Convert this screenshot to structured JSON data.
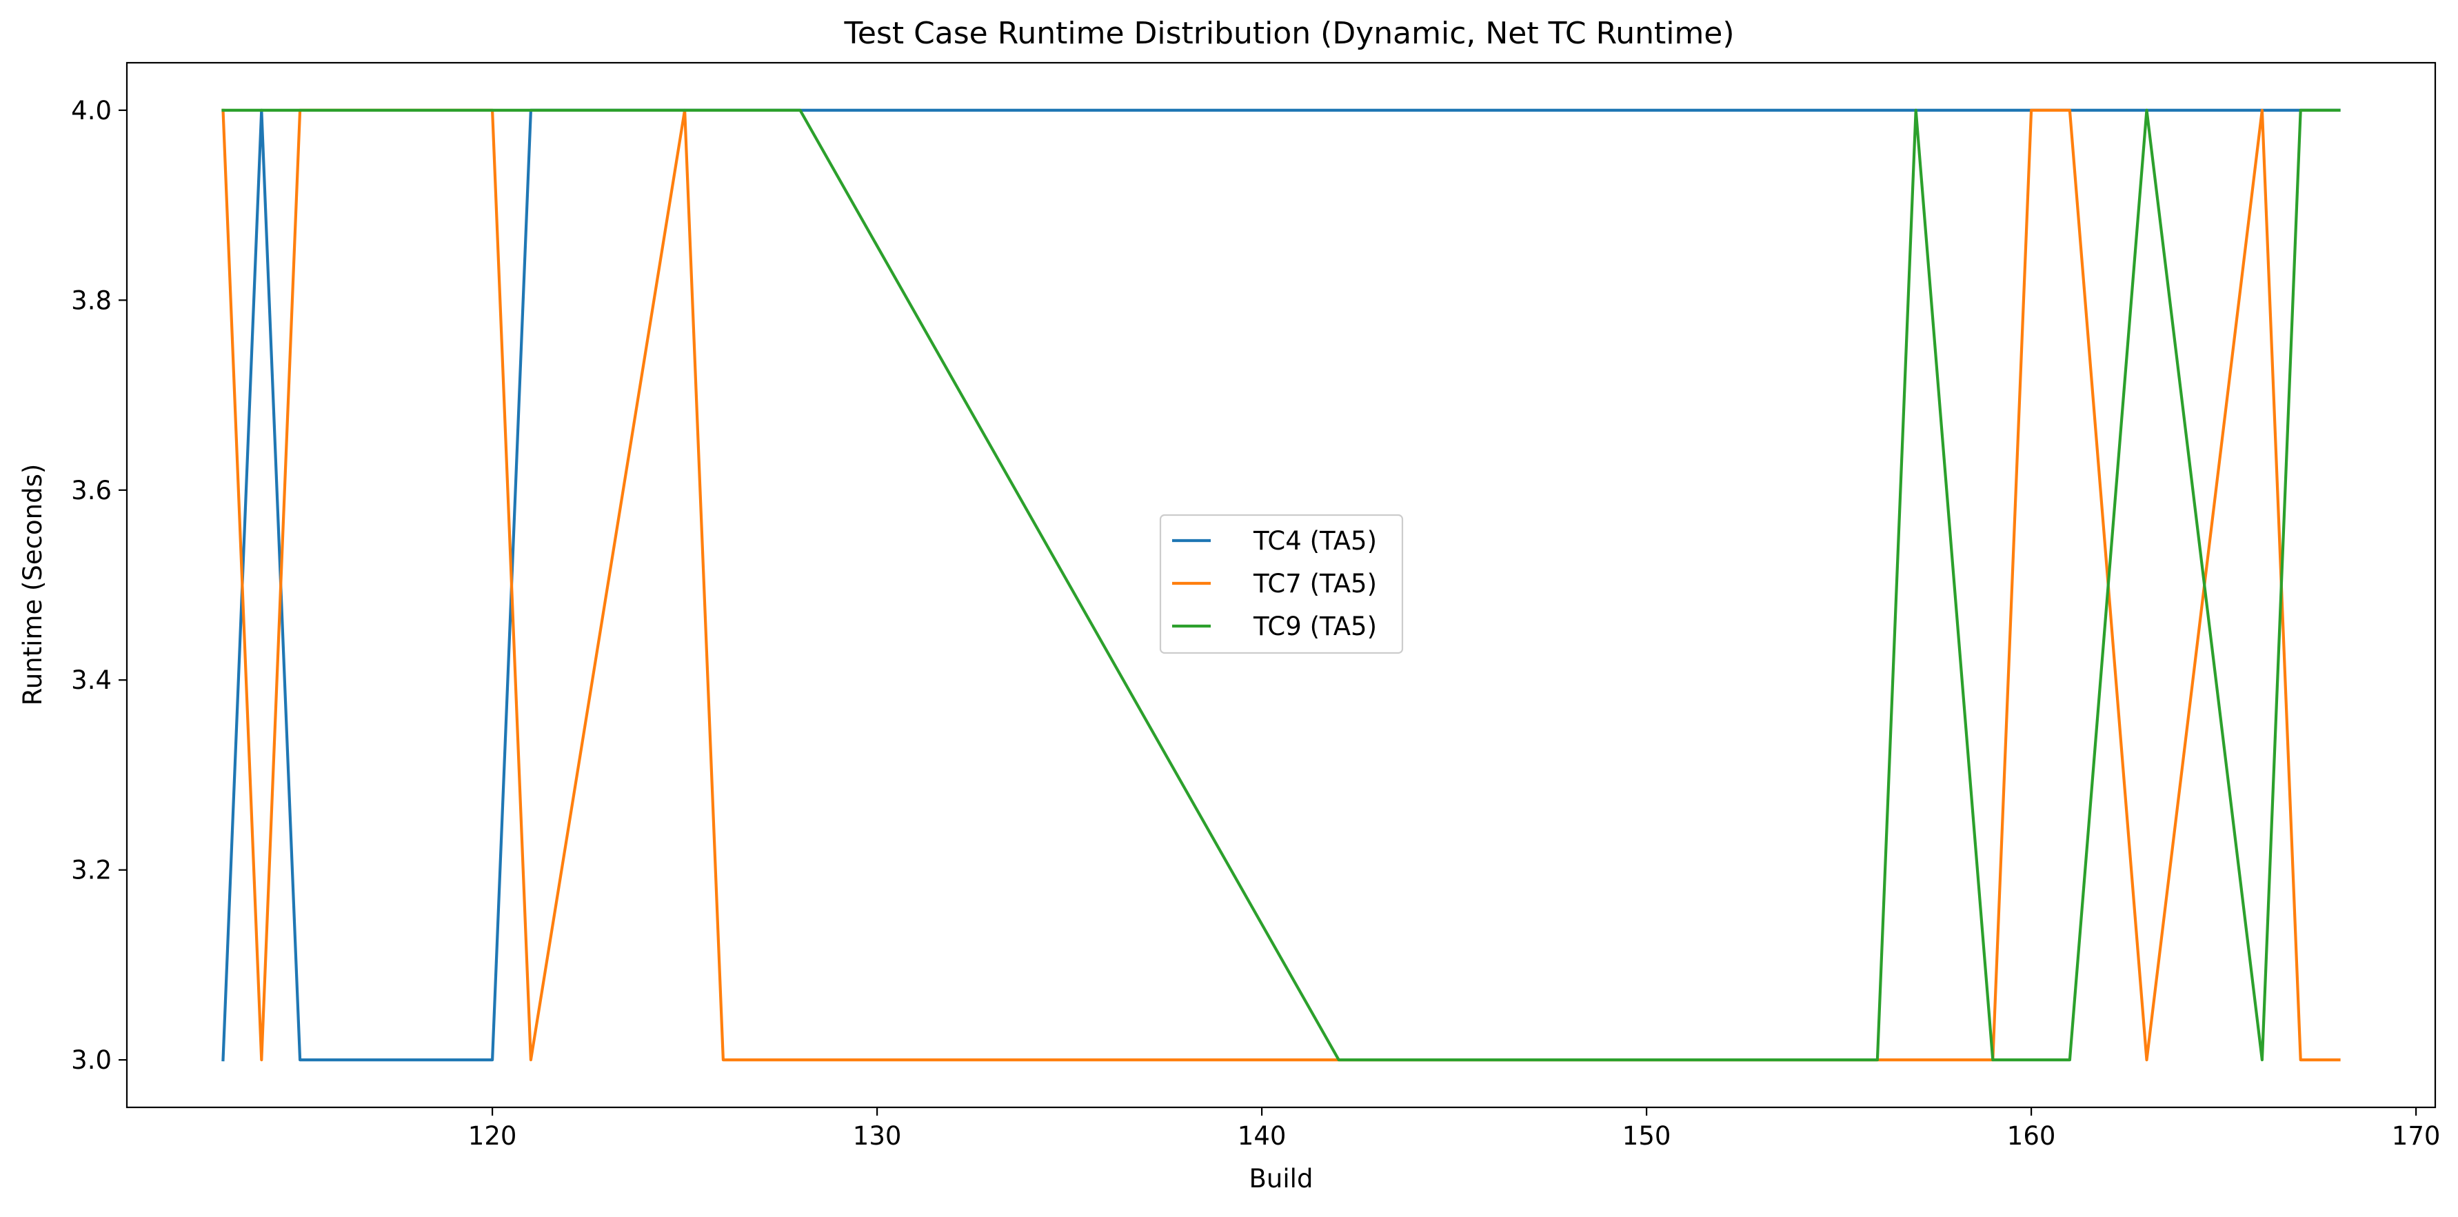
{
  "chart_data": {
    "type": "line",
    "title": "Test Case Runtime Distribution (Dynamic, Net TC Runtime)",
    "xlabel": "Build",
    "ylabel": "Runtime (Seconds)",
    "xlim": [
      110.5,
      170.5
    ],
    "ylim": [
      2.95,
      4.05
    ],
    "xticks": [
      120,
      130,
      140,
      150,
      160,
      170
    ],
    "yticks": [
      3.0,
      3.2,
      3.4,
      3.6,
      3.8,
      4.0
    ],
    "xtick_labels": [
      "120",
      "130",
      "140",
      "150",
      "160",
      "170"
    ],
    "ytick_labels": [
      "3.0",
      "3.2",
      "3.4",
      "3.6",
      "3.8",
      "4.0"
    ],
    "grid": false,
    "legend_position": "center",
    "series": [
      {
        "name": "TC4 (TA5)",
        "color": "#1f77b4",
        "x": [
          113,
          114,
          115,
          120,
          121,
          125,
          126,
          142,
          156,
          159,
          160,
          161,
          163,
          166,
          167,
          168
        ],
        "y": [
          3,
          4,
          3,
          3,
          4,
          4,
          4,
          4,
          4,
          4,
          4,
          4,
          4,
          4,
          4,
          4
        ]
      },
      {
        "name": "TC7 (TA5)",
        "color": "#ff7f0e",
        "x": [
          113,
          114,
          115,
          120,
          121,
          125,
          126,
          142,
          156,
          159,
          160,
          161,
          163,
          166,
          167,
          168
        ],
        "y": [
          4,
          3,
          4,
          4,
          3,
          4,
          3,
          3,
          3,
          3,
          4,
          4,
          3,
          4,
          3,
          3
        ]
      },
      {
        "name": "TC9 (TA5)",
        "color": "#2ca02c",
        "x": [
          113,
          128,
          142,
          156,
          157,
          159,
          161,
          163,
          166,
          167,
          168
        ],
        "y": [
          4,
          4,
          3,
          3,
          4,
          3,
          3,
          4,
          3,
          4,
          4
        ]
      }
    ]
  }
}
